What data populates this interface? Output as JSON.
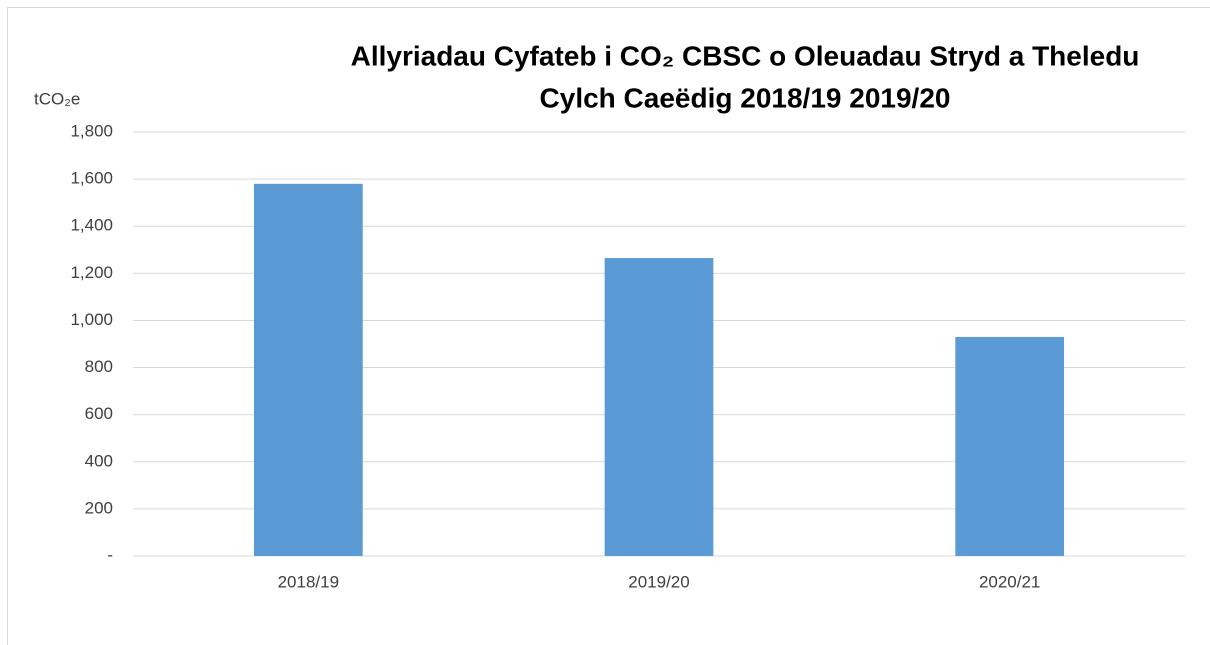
{
  "chart_data": {
    "type": "bar",
    "title": [
      "Allyriadau Cyfateb i CO₂ CBSC o Oleuadau Stryd a Theledu",
      "Cylch Caeëdig 2018/19  2019/20"
    ],
    "y_label": "tCO₂e",
    "categories": [
      "2018/19",
      "2019/20",
      "2020/21"
    ],
    "values": [
      1580,
      1265,
      930
    ],
    "color": "#5b9bd5",
    "ylim": [
      0,
      1800
    ],
    "yticks": [
      {
        "value": 0,
        "label": "-"
      },
      200,
      400,
      600,
      800,
      {
        "value": 1000,
        "label": "1,000"
      },
      {
        "value": 1200,
        "label": "1,200"
      },
      {
        "value": 1400,
        "label": "1,400"
      },
      {
        "value": 1600,
        "label": "1,600"
      },
      {
        "value": 1800,
        "label": "1,800"
      }
    ],
    "grid": true
  }
}
